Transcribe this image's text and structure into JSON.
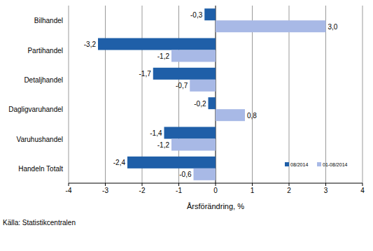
{
  "chart_data": {
    "type": "bar",
    "orientation": "horizontal",
    "categories": [
      "Bilhandel",
      "Partihandel",
      "Detaljhandel",
      "Dagligvaruhandel",
      "Varuhushandel",
      "Handeln Totalt"
    ],
    "series": [
      {
        "name": "08/2014",
        "color": "#1f5fa8",
        "values": [
          -0.3,
          -3.2,
          -1.7,
          -0.2,
          -1.4,
          -2.4
        ],
        "value_labels": [
          "-0,3",
          "-3,2",
          "-1,7",
          "-0,2",
          "-1,4",
          "-2,4"
        ]
      },
      {
        "name": "01-08/2014",
        "color": "#a8b9e6",
        "values": [
          3.0,
          -1.2,
          -0.7,
          0.8,
          -1.2,
          -0.6
        ],
        "value_labels": [
          "3,0",
          "-1,2",
          "-0,7",
          "0,8",
          "-1,2",
          "-0,6"
        ]
      }
    ],
    "x_label": "Årsförändring, %",
    "source": "Källa: Statistikcentralen",
    "xlim": [
      -4,
      4
    ],
    "xticks": [
      -4,
      -3,
      -2,
      -1,
      0,
      1,
      2,
      3,
      4
    ],
    "grid": true,
    "legend": "lower right",
    "data_labels": true
  }
}
